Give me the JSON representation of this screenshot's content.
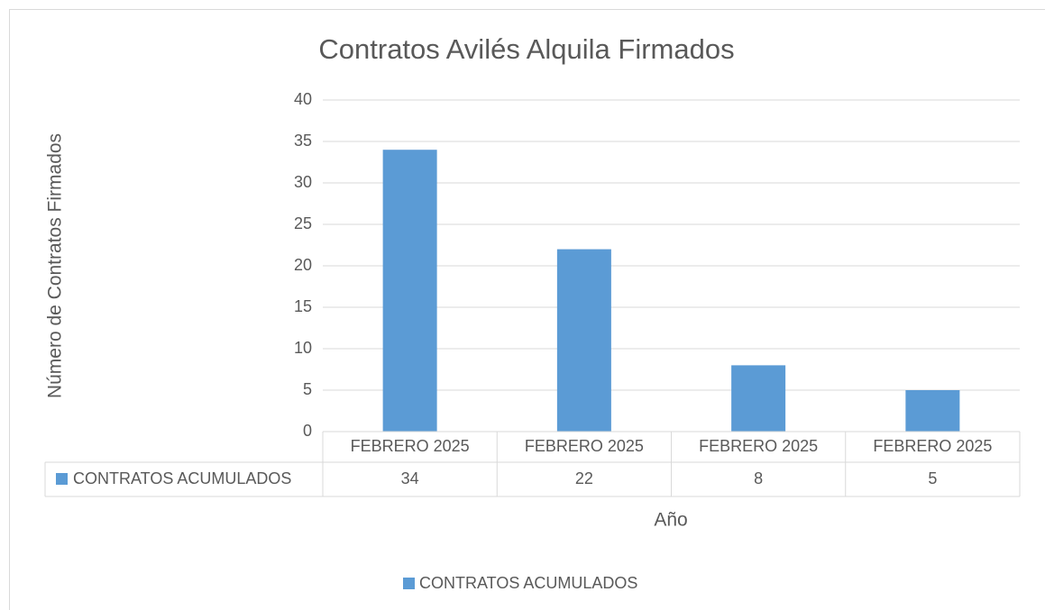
{
  "chart_data": {
    "type": "bar",
    "title": "Contratos Avilés Alquila Firmados",
    "x_label": "Año",
    "y_label": "Número de Contratos Firmados",
    "categories": [
      "FEBRERO 2025",
      "FEBRERO 2025",
      "FEBRERO 2025",
      "FEBRERO 2025"
    ],
    "series": [
      {
        "name": "CONTRATOS ACUMULADOS",
        "color": "#5b9bd5",
        "values": [
          34,
          22,
          8,
          5
        ]
      }
    ],
    "ylim": [
      0,
      40
    ],
    "yticks": [
      0,
      5,
      10,
      15,
      20,
      25,
      30,
      35,
      40
    ],
    "grid": true,
    "data_table": true,
    "legend": "bottom"
  }
}
